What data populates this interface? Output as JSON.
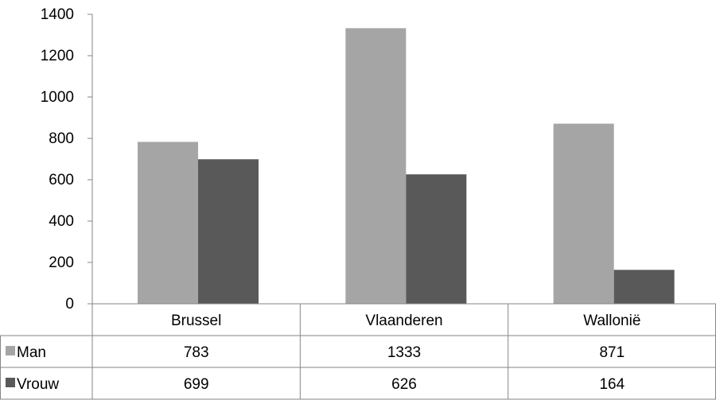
{
  "chart_data": {
    "type": "bar",
    "categories": [
      "Brussel",
      "Vlaanderen",
      "Wallonië"
    ],
    "series": [
      {
        "name": "Man",
        "values": [
          783,
          1333,
          871
        ],
        "color": "#a5a5a5"
      },
      {
        "name": "Vrouw",
        "values": [
          699,
          626,
          164
        ],
        "color": "#595959"
      }
    ],
    "ylim": [
      0,
      1400
    ],
    "yticks": [
      "0",
      "200",
      "400",
      "600",
      "800",
      "1000",
      "1200",
      "1400"
    ],
    "title": "",
    "xlabel": "",
    "ylabel": "",
    "grid": false,
    "legend": "data-table"
  }
}
